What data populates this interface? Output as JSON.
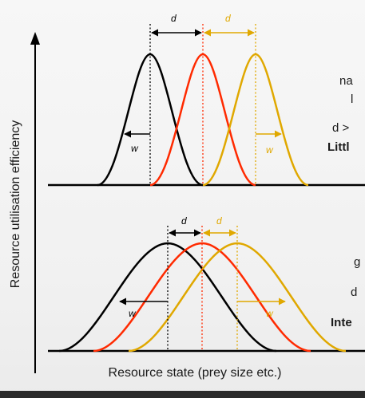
{
  "axis_labels": {
    "y": "Resource utilisation efficiency",
    "x": "Resource state (prey size etc.)"
  },
  "symbols": {
    "distance": "d",
    "width": "w"
  },
  "colors": {
    "species_1": "#000000",
    "species_2": "#ff2a00",
    "species_3": "#e0a800",
    "little_competition": "#1a8a1a",
    "intense_competition": "#e00000"
  },
  "panels": [
    {
      "id": "top",
      "annotations": [
        "na",
        "l",
        "d >",
        "Littl"
      ]
    },
    {
      "id": "bottom",
      "annotations": [
        "g",
        "d",
        "Inte"
      ]
    }
  ]
}
